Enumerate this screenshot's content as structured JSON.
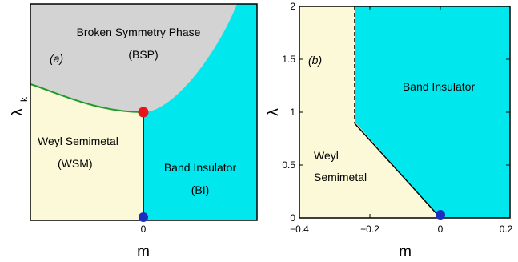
{
  "colors": {
    "broken_symmetry": "#d3d3d3",
    "weyl": "#fbf9d8",
    "band_insulator": "#00e8ee",
    "boundary_green": "#1f9b2a",
    "critical_red": "#e8141b",
    "critical_blue": "#1a2fbf"
  },
  "panel_a": {
    "tag": "(a)",
    "region_bsp": {
      "line1": "Broken Symmetry Phase",
      "line2": "(BSP)"
    },
    "region_wsm": {
      "line1": "Weyl  Semimetal",
      "line2": "(WSM)"
    },
    "region_bi": {
      "line1": "Band Insulator",
      "line2": "(BI)"
    },
    "x_label": "m",
    "y_label": "λ",
    "y_label_sub": "k",
    "x_tick": "0"
  },
  "panel_b": {
    "tag": "(b)",
    "region_bi": "Band Insulator",
    "region_weyl": {
      "line1": "Weyl",
      "line2": "Semimetal"
    },
    "x_label": "m",
    "y_label": "λ",
    "x_ticks": [
      "−0.4",
      "−0.2",
      "0",
      "0.2"
    ],
    "y_ticks": [
      "0",
      "0.5",
      "1",
      "1.5",
      "2"
    ]
  }
}
